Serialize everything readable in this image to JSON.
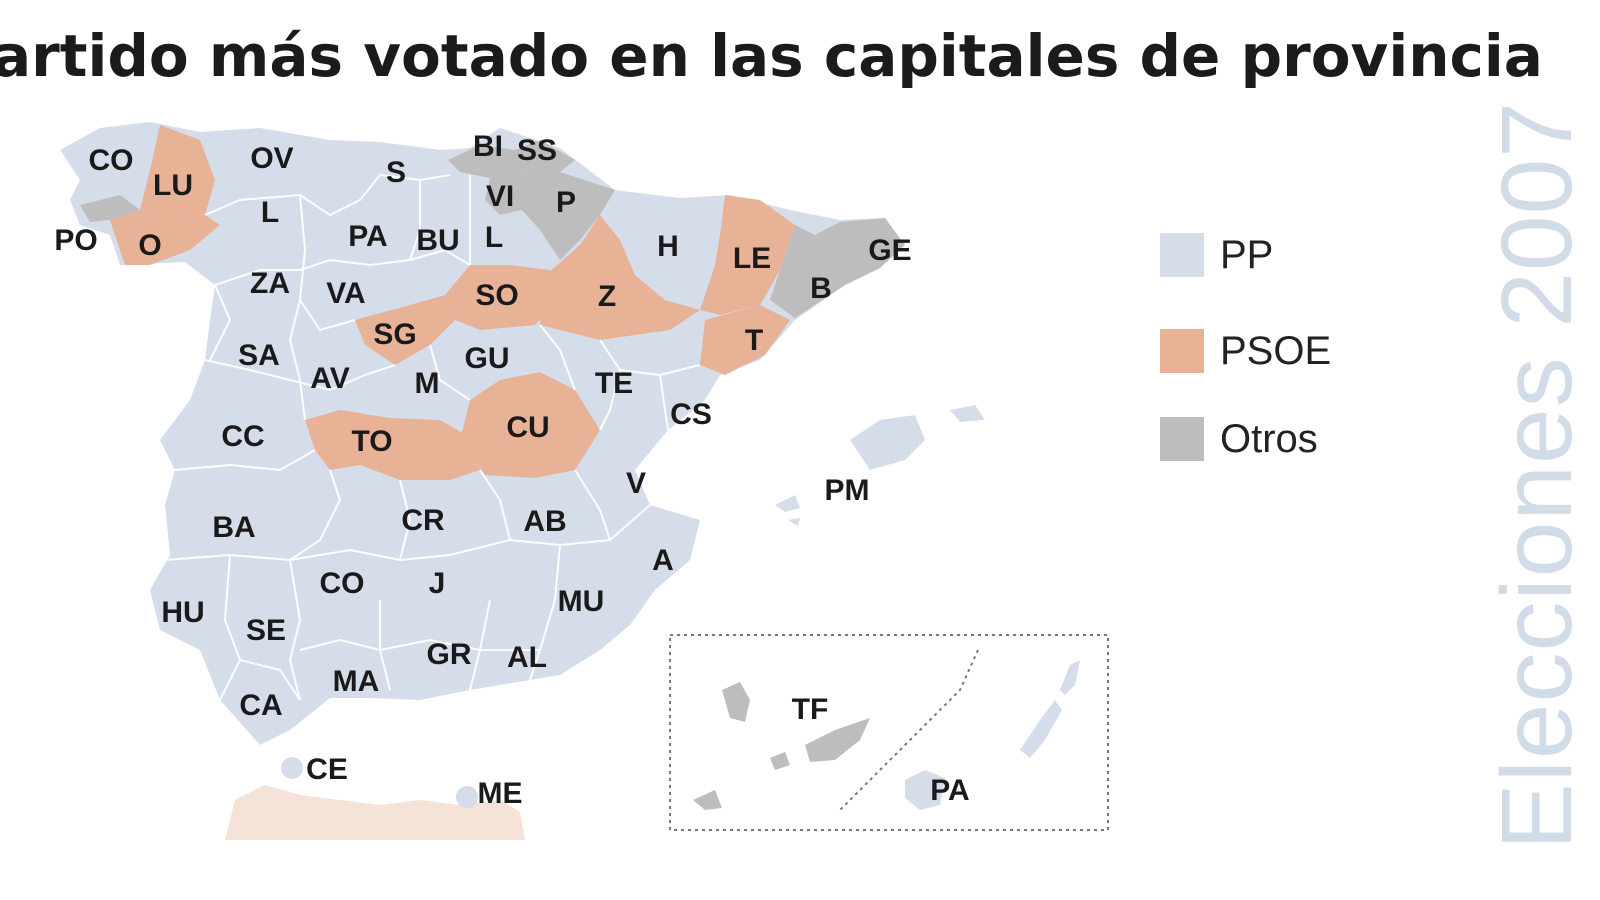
{
  "title": "artido más votado en las capitales de provincia",
  "vertical_label": "Elecciones 2007",
  "colors": {
    "pp": "#d5ddea",
    "psoe": "#e8b297",
    "otros": "#bdbdbd",
    "border": "#ffffff",
    "africa": "#f4e3d6"
  },
  "legend": [
    {
      "label": "PP",
      "party": "pp"
    },
    {
      "label": "PSOE",
      "party": "psoe"
    },
    {
      "label": "Otros",
      "party": "otros"
    }
  ],
  "provinces": [
    {
      "code": "CO",
      "party": "pp"
    },
    {
      "code": "LU",
      "party": "psoe"
    },
    {
      "code": "OV",
      "party": "pp"
    },
    {
      "code": "S",
      "party": "pp"
    },
    {
      "code": "BI",
      "party": "otros"
    },
    {
      "code": "SS",
      "party": "otros"
    },
    {
      "code": "VI",
      "party": "otros"
    },
    {
      "code": "P",
      "party": "otros"
    },
    {
      "code": "PO",
      "party": "otros"
    },
    {
      "code": "O",
      "party": "psoe"
    },
    {
      "code": "L",
      "party": "pp"
    },
    {
      "code": "PA",
      "party": "pp"
    },
    {
      "code": "BU",
      "party": "pp"
    },
    {
      "code": "L",
      "party": "pp"
    },
    {
      "code": "H",
      "party": "pp"
    },
    {
      "code": "LE",
      "party": "psoe"
    },
    {
      "code": "GE",
      "party": "otros"
    },
    {
      "code": "ZA",
      "party": "pp"
    },
    {
      "code": "VA",
      "party": "pp"
    },
    {
      "code": "SO",
      "party": "psoe"
    },
    {
      "code": "Z",
      "party": "psoe"
    },
    {
      "code": "B",
      "party": "otros"
    },
    {
      "code": "SG",
      "party": "psoe"
    },
    {
      "code": "T",
      "party": "psoe"
    },
    {
      "code": "SA",
      "party": "pp"
    },
    {
      "code": "AV",
      "party": "pp"
    },
    {
      "code": "M",
      "party": "pp"
    },
    {
      "code": "GU",
      "party": "pp"
    },
    {
      "code": "TE",
      "party": "pp"
    },
    {
      "code": "CS",
      "party": "pp"
    },
    {
      "code": "CC",
      "party": "pp"
    },
    {
      "code": "TO",
      "party": "psoe"
    },
    {
      "code": "CU",
      "party": "psoe"
    },
    {
      "code": "V",
      "party": "pp"
    },
    {
      "code": "PM",
      "party": "pp"
    },
    {
      "code": "BA",
      "party": "pp"
    },
    {
      "code": "CR",
      "party": "pp"
    },
    {
      "code": "AB",
      "party": "pp"
    },
    {
      "code": "A",
      "party": "pp"
    },
    {
      "code": "CO",
      "party": "pp"
    },
    {
      "code": "J",
      "party": "pp"
    },
    {
      "code": "MU",
      "party": "pp"
    },
    {
      "code": "HU",
      "party": "pp"
    },
    {
      "code": "SE",
      "party": "pp"
    },
    {
      "code": "GR",
      "party": "pp"
    },
    {
      "code": "AL",
      "party": "pp"
    },
    {
      "code": "MA",
      "party": "pp"
    },
    {
      "code": "CA",
      "party": "pp"
    },
    {
      "code": "CE",
      "party": "pp"
    },
    {
      "code": "ME",
      "party": "pp"
    },
    {
      "code": "TF",
      "party": "otros"
    },
    {
      "code": "PA",
      "party": "pp"
    }
  ]
}
